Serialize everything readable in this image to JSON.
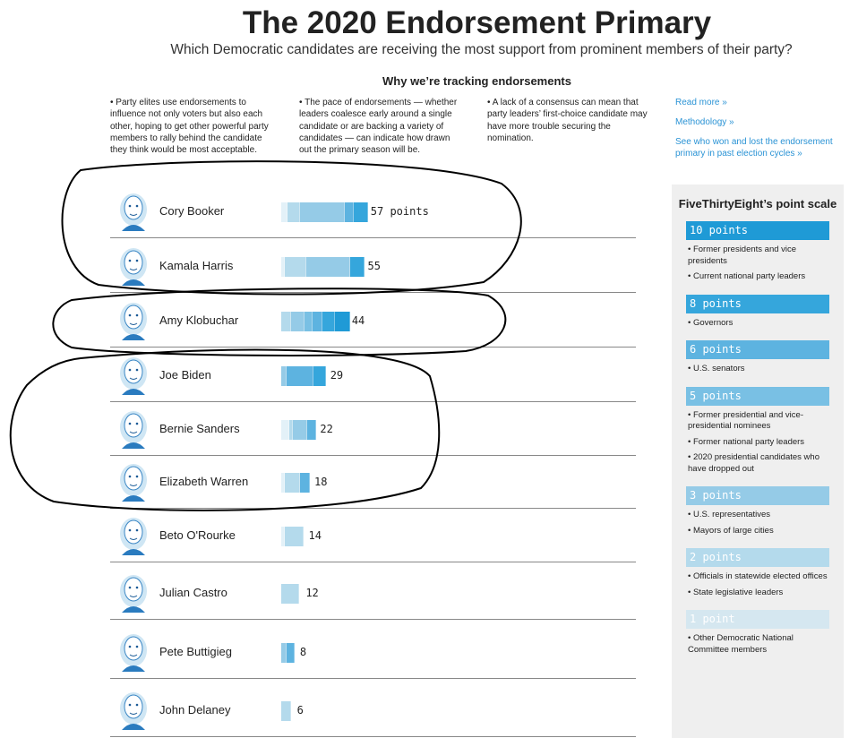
{
  "title": "The 2020 Endorsement Primary",
  "subtitle": "Which Democratic candidates are receiving the most support from prominent members of their party?",
  "why_heading": "Why we’re tracking endorsements",
  "why_columns": [
    "• Party elites use endorsements to influence not only voters but also each other, hoping to get other powerful party members to rally behind the candidate they think would be most acceptable.",
    "• The pace of endorsements — whether leaders coalesce early around a single candidate or are backing a variety of candidates — can indicate how drawn out the primary season will be.",
    "• A lack of a consensus can mean that party leaders’ first-choice candidate may have more trouble securing the nomination."
  ],
  "links": [
    "Read more »",
    "Methodology »",
    "See who won and lost the endorsement primary in past election cycles »"
  ],
  "tier_colors": {
    "10": "#1f9ad6",
    "8": "#35a6dc",
    "6": "#5db3e0",
    "5": "#79c0e4",
    "3": "#95cbe7",
    "2": "#b4daec",
    "1": "#e3f1f8"
  },
  "chart_data": {
    "type": "bar",
    "orientation": "horizontal-stacked",
    "unit_label": "points",
    "candidates": [
      {
        "name": "Cory Booker",
        "total": 57,
        "label": "57 points",
        "segments": [
          {
            "tier": 1,
            "points": 4
          },
          {
            "tier": 2,
            "points": 8
          },
          {
            "tier": 3,
            "points": 30
          },
          {
            "tier": 6,
            "points": 6
          },
          {
            "tier": 8,
            "points": 9
          }
        ]
      },
      {
        "name": "Kamala Harris",
        "total": 55,
        "label": "55",
        "segments": [
          {
            "tier": 1,
            "points": 2
          },
          {
            "tier": 2,
            "points": 14
          },
          {
            "tier": 3,
            "points": 30
          },
          {
            "tier": 8,
            "points": 9
          }
        ]
      },
      {
        "name": "Amy Klobuchar",
        "total": 44,
        "label": "44",
        "segments": [
          {
            "tier": 2,
            "points": 6
          },
          {
            "tier": 3,
            "points": 9
          },
          {
            "tier": 5,
            "points": 5
          },
          {
            "tier": 6,
            "points": 6
          },
          {
            "tier": 8,
            "points": 8
          },
          {
            "tier": 10,
            "points": 10
          }
        ]
      },
      {
        "name": "Joe Biden",
        "total": 29,
        "label": "29",
        "segments": [
          {
            "tier": 3,
            "points": 3
          },
          {
            "tier": 6,
            "points": 18
          },
          {
            "tier": 8,
            "points": 8
          }
        ]
      },
      {
        "name": "Bernie Sanders",
        "total": 22,
        "label": "22",
        "segments": [
          {
            "tier": 1,
            "points": 5
          },
          {
            "tier": 2,
            "points": 2
          },
          {
            "tier": 3,
            "points": 9
          },
          {
            "tier": 6,
            "points": 6
          }
        ]
      },
      {
        "name": "Elizabeth Warren",
        "total": 18,
        "label": "18",
        "segments": [
          {
            "tier": 1,
            "points": 2
          },
          {
            "tier": 2,
            "points": 10
          },
          {
            "tier": 6,
            "points": 6
          }
        ]
      },
      {
        "name": "Beto O'Rourke",
        "total": 14,
        "label": "14",
        "segments": [
          {
            "tier": 1,
            "points": 2
          },
          {
            "tier": 2,
            "points": 12
          }
        ]
      },
      {
        "name": "Julian Castro",
        "total": 12,
        "label": "12",
        "segments": [
          {
            "tier": 2,
            "points": 12
          }
        ]
      },
      {
        "name": "Pete Buttigieg",
        "total": 8,
        "label": "8",
        "segments": [
          {
            "tier": 3,
            "points": 3
          },
          {
            "tier": 6,
            "points": 5
          }
        ]
      },
      {
        "name": "John Delaney",
        "total": 6,
        "label": "6",
        "segments": [
          {
            "tier": 2,
            "points": 6
          }
        ]
      }
    ]
  },
  "scale_panel": {
    "title": "FiveThirtyEight’s point scale",
    "tiers": [
      {
        "label": "10 points",
        "tier": 10,
        "items": [
          "• Former presidents and vice presidents",
          "• Current national party leaders"
        ]
      },
      {
        "label": "8 points",
        "tier": 8,
        "items": [
          "• Governors"
        ]
      },
      {
        "label": "6 points",
        "tier": 6,
        "items": [
          "• U.S. senators"
        ]
      },
      {
        "label": "5 points",
        "tier": 5,
        "items": [
          "• Former presidential and vice-presidential nominees",
          "• Former national party leaders",
          "• 2020 presidential candidates who have dropped out"
        ]
      },
      {
        "label": "3 points",
        "tier": 3,
        "items": [
          "• U.S. representatives",
          "• Mayors of large cities"
        ]
      },
      {
        "label": "2 points",
        "tier": 2,
        "items": [
          "• Officials in statewide elected offices",
          "• State legislative leaders"
        ]
      },
      {
        "label": "1 point",
        "tier": 1,
        "items": [
          "• Other Democratic National Committee members"
        ]
      }
    ]
  }
}
